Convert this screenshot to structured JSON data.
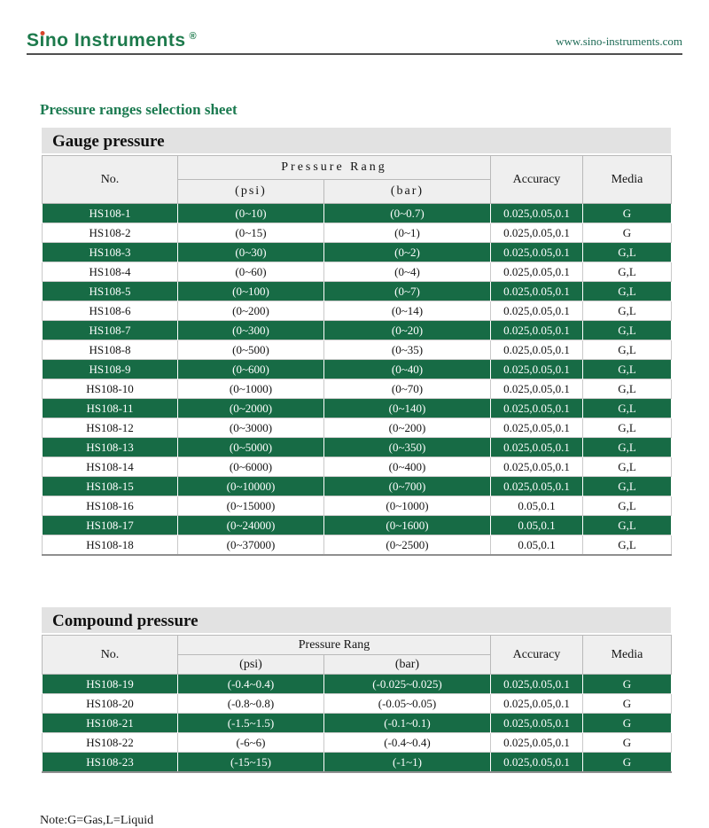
{
  "header": {
    "logo_pre": "S",
    "logo_i": "i",
    "logo_post": "no Instruments",
    "logo_reg": "®",
    "website": "www.sino-instruments.com"
  },
  "title": "Pressure ranges selection sheet",
  "note": "Note:G=Gas,L=Liquid",
  "colors": {
    "brand_green": "#1d7a4c",
    "row_green": "#176b45",
    "logo_dot_red": "#d8432a",
    "section_bar_gray": "#e2e2e2",
    "header_cell_gray": "#efefef"
  },
  "tables": [
    {
      "section_title": "Gauge pressure",
      "columns": {
        "no": "No.",
        "pressure_rang": "Pressure Rang",
        "psi": "(psi)",
        "bar": "(bar)",
        "accuracy": "Accuracy",
        "media": "Media"
      },
      "rows": [
        {
          "no": "HS108-1",
          "psi": "(0~10)",
          "bar": "(0~0.7)",
          "accuracy": "0.025,0.05,0.1",
          "media": "G",
          "highlight": true
        },
        {
          "no": "HS108-2",
          "psi": "(0~15)",
          "bar": "(0~1)",
          "accuracy": "0.025,0.05,0.1",
          "media": "G",
          "highlight": false
        },
        {
          "no": "HS108-3",
          "psi": "(0~30)",
          "bar": "(0~2)",
          "accuracy": "0.025,0.05,0.1",
          "media": "G,L",
          "highlight": true
        },
        {
          "no": "HS108-4",
          "psi": "(0~60)",
          "bar": "(0~4)",
          "accuracy": "0.025,0.05,0.1",
          "media": "G,L",
          "highlight": false
        },
        {
          "no": "HS108-5",
          "psi": "(0~100)",
          "bar": "(0~7)",
          "accuracy": "0.025,0.05,0.1",
          "media": "G,L",
          "highlight": true
        },
        {
          "no": "HS108-6",
          "psi": "(0~200)",
          "bar": "(0~14)",
          "accuracy": "0.025,0.05,0.1",
          "media": "G,L",
          "highlight": false
        },
        {
          "no": "HS108-7",
          "psi": "(0~300)",
          "bar": "(0~20)",
          "accuracy": "0.025,0.05,0.1",
          "media": "G,L",
          "highlight": true
        },
        {
          "no": "HS108-8",
          "psi": "(0~500)",
          "bar": "(0~35)",
          "accuracy": "0.025,0.05,0.1",
          "media": "G,L",
          "highlight": false
        },
        {
          "no": "HS108-9",
          "psi": "(0~600)",
          "bar": "(0~40)",
          "accuracy": "0.025,0.05,0.1",
          "media": "G,L",
          "highlight": true
        },
        {
          "no": "HS108-10",
          "psi": "(0~1000)",
          "bar": "(0~70)",
          "accuracy": "0.025,0.05,0.1",
          "media": "G,L",
          "highlight": false
        },
        {
          "no": "HS108-11",
          "psi": "(0~2000)",
          "bar": "(0~140)",
          "accuracy": "0.025,0.05,0.1",
          "media": "G,L",
          "highlight": true
        },
        {
          "no": "HS108-12",
          "psi": "(0~3000)",
          "bar": "(0~200)",
          "accuracy": "0.025,0.05,0.1",
          "media": "G,L",
          "highlight": false
        },
        {
          "no": "HS108-13",
          "psi": "(0~5000)",
          "bar": "(0~350)",
          "accuracy": "0.025,0.05,0.1",
          "media": "G,L",
          "highlight": true
        },
        {
          "no": "HS108-14",
          "psi": "(0~6000)",
          "bar": "(0~400)",
          "accuracy": "0.025,0.05,0.1",
          "media": "G,L",
          "highlight": false
        },
        {
          "no": "HS108-15",
          "psi": "(0~10000)",
          "bar": "(0~700)",
          "accuracy": "0.025,0.05,0.1",
          "media": "G,L",
          "highlight": true
        },
        {
          "no": "HS108-16",
          "psi": "(0~15000)",
          "bar": "(0~1000)",
          "accuracy": "0.05,0.1",
          "media": "G,L",
          "highlight": false
        },
        {
          "no": "HS108-17",
          "psi": "(0~24000)",
          "bar": "(0~1600)",
          "accuracy": "0.05,0.1",
          "media": "G,L",
          "highlight": true
        },
        {
          "no": "HS108-18",
          "psi": "(0~37000)",
          "bar": "(0~2500)",
          "accuracy": "0.05,0.1",
          "media": "G,L",
          "highlight": false
        }
      ]
    },
    {
      "section_title": "Compound pressure",
      "columns": {
        "no": "No.",
        "pressure_rang": "Pressure Rang",
        "psi": "(psi)",
        "bar": "(bar)",
        "accuracy": "Accuracy",
        "media": "Media"
      },
      "rows": [
        {
          "no": "HS108-19",
          "psi": "(-0.4~0.4)",
          "bar": "(-0.025~0.025)",
          "accuracy": "0.025,0.05,0.1",
          "media": "G",
          "highlight": true
        },
        {
          "no": "HS108-20",
          "psi": "(-0.8~0.8)",
          "bar": "(-0.05~0.05)",
          "accuracy": "0.025,0.05,0.1",
          "media": "G",
          "highlight": false
        },
        {
          "no": "HS108-21",
          "psi": "(-1.5~1.5)",
          "bar": "(-0.1~0.1)",
          "accuracy": "0.025,0.05,0.1",
          "media": "G",
          "highlight": true
        },
        {
          "no": "HS108-22",
          "psi": "(-6~6)",
          "bar": "(-0.4~0.4)",
          "accuracy": "0.025,0.05,0.1",
          "media": "G",
          "highlight": false
        },
        {
          "no": "HS108-23",
          "psi": "(-15~15)",
          "bar": "(-1~1)",
          "accuracy": "0.025,0.05,0.1",
          "media": "G",
          "highlight": true
        }
      ]
    }
  ]
}
